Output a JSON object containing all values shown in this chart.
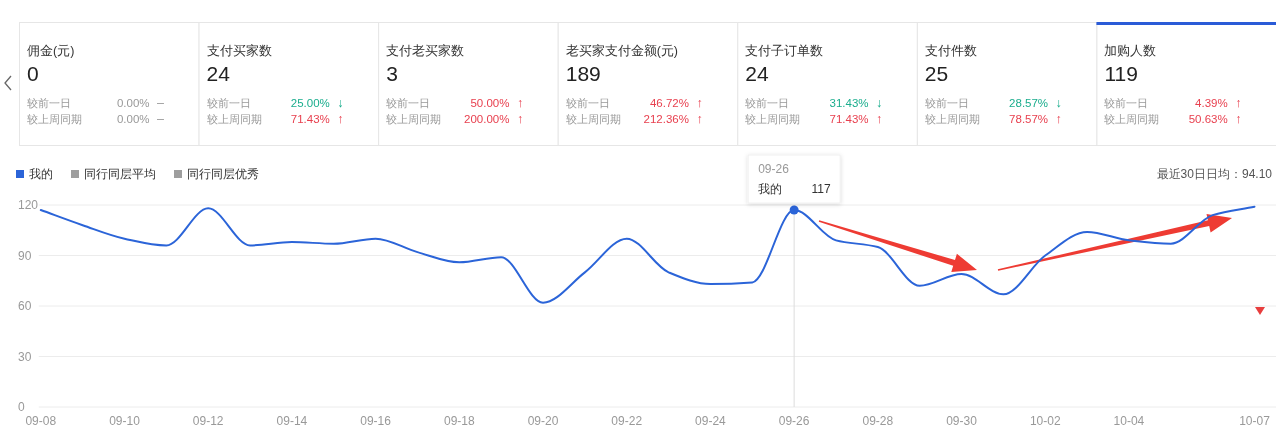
{
  "chart_data": [
    {
      "type": "other",
      "categories": [
        "佣金(元)",
        "支付买家数",
        "支付老买家数",
        "老买家支付金额(元)",
        "支付子订单数",
        "支付件数",
        "加购人数"
      ],
      "values": [
        0,
        24,
        3,
        189,
        24,
        25,
        119
      ],
      "data_labels": true,
      "series": [
        {
          "name": "较前一日",
          "values": [
            0,
            25.0,
            50.0,
            46.72,
            31.43,
            28.57,
            4.39
          ],
          "value_labels": [
            "0.00% –",
            "25.00% ↓",
            "50.00% ↑",
            "46.72% ↑",
            "31.43% ↓",
            "28.57% ↓",
            "4.39% ↑"
          ],
          "colors": [
            "#999999",
            "#1aad8d",
            "#e8404f",
            "#e8404f",
            "#1aad8d",
            "#1aad8d",
            "#e8404f"
          ]
        },
        {
          "name": "较上周同期",
          "values": [
            0,
            71.43,
            200.0,
            212.36,
            71.43,
            78.57,
            50.63
          ],
          "value_labels": [
            "0.00% –",
            "71.43% ↑",
            "200.00% ↑",
            "212.36% ↑",
            "71.43% ↑",
            "78.57% ↑",
            "50.63% ↑"
          ],
          "colors": [
            "#999999",
            "#e8404f",
            "#e8404f",
            "#e8404f",
            "#e8404f",
            "#e8404f",
            "#e8404f"
          ]
        }
      ]
    },
    {
      "type": "line",
      "categories": [
        "09-08",
        null,
        "09-10",
        null,
        "09-12",
        null,
        "09-14",
        null,
        "09-16",
        null,
        "09-18",
        null,
        "09-20",
        null,
        "09-22",
        null,
        "09-24",
        null,
        "09-26",
        null,
        "09-28",
        null,
        "09-30",
        null,
        "10-02",
        null,
        "10-04",
        null,
        null,
        "10-07"
      ],
      "series": [
        {
          "name": "我的",
          "color": "#2b64d8",
          "values": [
            117,
            108,
            100,
            96,
            118,
            96,
            98,
            97,
            100,
            92,
            86,
            89,
            62,
            80,
            100,
            80,
            73,
            74,
            117,
            99,
            95,
            72,
            79,
            67,
            90,
            104,
            99,
            97,
            114,
            119
          ]
        },
        {
          "name": "同行同层平均",
          "color": "#9e9e9e",
          "values": [
            null,
            null,
            null,
            null,
            null,
            null,
            null,
            null,
            null,
            null,
            null,
            null,
            null,
            null,
            null,
            null,
            null,
            null,
            null,
            null,
            null,
            null,
            null,
            null,
            null,
            null,
            null,
            null,
            null,
            null
          ]
        },
        {
          "name": "同行同层优秀",
          "color": "#9e9e9e",
          "values": [
            null,
            null,
            null,
            null,
            null,
            null,
            null,
            null,
            null,
            null,
            null,
            null,
            null,
            null,
            null,
            null,
            null,
            null,
            null,
            null,
            null,
            null,
            null,
            null,
            null,
            null,
            null,
            null,
            null,
            null
          ]
        }
      ],
      "ylim": [
        0,
        120
      ],
      "yticks": [
        0,
        30,
        60,
        90,
        120
      ],
      "grid": "y",
      "legend": "top left",
      "marker": "none",
      "annotations": [
        "最近30日日均：94.10",
        {
          "text": "09-26",
          "x": "09-26",
          "y": 117
        },
        {
          "text": "我的 117",
          "x": "09-26",
          "y": 117
        }
      ]
    }
  ]
}
